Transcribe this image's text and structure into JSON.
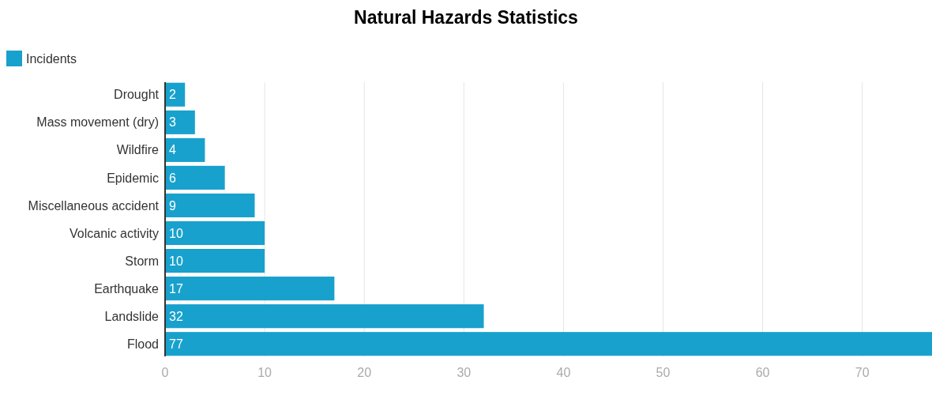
{
  "chart_data": {
    "type": "bar",
    "orientation": "horizontal",
    "title": "Natural Hazards Statistics",
    "categories": [
      "Drought",
      "Mass movement (dry)",
      "Wildfire",
      "Epidemic",
      "Miscellaneous accident",
      "Volcanic activity",
      "Storm",
      "Earthquake",
      "Landslide",
      "Flood"
    ],
    "series": [
      {
        "name": "Incidents",
        "color": "#18a1cd",
        "values": [
          2,
          3,
          4,
          6,
          9,
          10,
          10,
          17,
          32,
          77
        ]
      }
    ],
    "xlim": [
      0,
      77
    ],
    "xticks": [
      0,
      10,
      20,
      30,
      40,
      50,
      60,
      70
    ],
    "grid": "x",
    "legend": "top left",
    "data_labels": true
  }
}
